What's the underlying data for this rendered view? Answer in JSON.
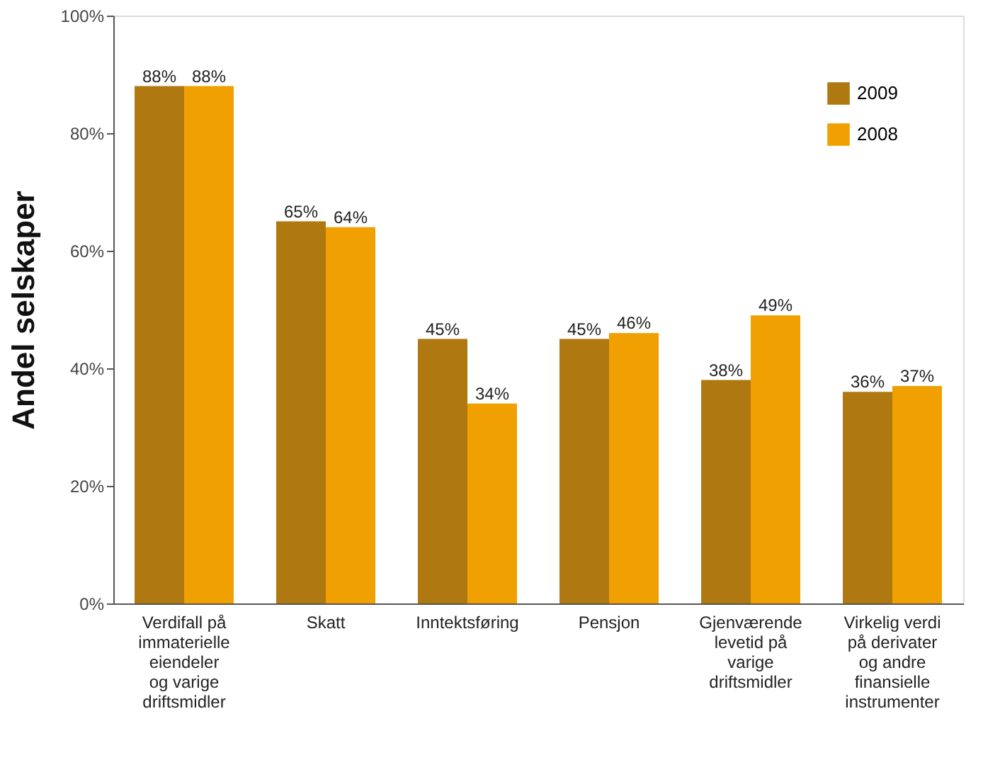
{
  "chart_data": {
    "type": "bar",
    "ylabel": "Andel selskaper",
    "categories": [
      "Verdifall på\nimmaterielle\neiendeler\nog varige\ndriftsmidler",
      "Skatt",
      "Inntektsføring",
      "Pensjon",
      "Gjenværende\nlevetid på\nvarige\ndriftsmidler",
      "Virkelig verdi\npå derivater\nog andre\nfinansielle\ninstrumenter"
    ],
    "series": [
      {
        "name": "2009",
        "color": "#b07810",
        "values": [
          88,
          65,
          45,
          45,
          38,
          36
        ]
      },
      {
        "name": "2008",
        "color": "#f0a000",
        "values": [
          88,
          64,
          34,
          46,
          49,
          37
        ]
      }
    ],
    "ylim": [
      0,
      100
    ],
    "yticks": [
      {
        "value": 0,
        "label": "0%"
      },
      {
        "value": 20,
        "label": "20%"
      },
      {
        "value": 40,
        "label": "40%"
      },
      {
        "value": 60,
        "label": "60%"
      },
      {
        "value": 80,
        "label": "80%"
      },
      {
        "value": 100,
        "label": "100%"
      }
    ],
    "value_labels": [
      [
        "88%",
        "65%",
        "45%",
        "45%",
        "38%",
        "36%"
      ],
      [
        "88%",
        "64%",
        "34%",
        "46%",
        "49%",
        "37%"
      ]
    ],
    "legend": "top right",
    "grid": false
  }
}
